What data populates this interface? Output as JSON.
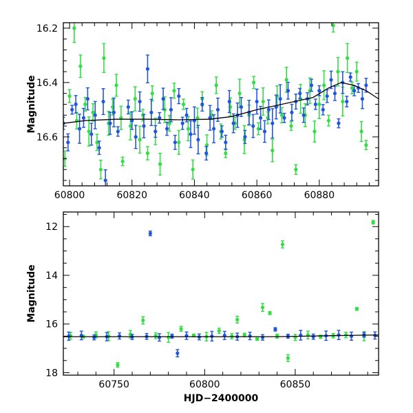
{
  "chart_data": [
    {
      "type": "scatter",
      "panel": "top",
      "xlabel": "",
      "ylabel": "Magnitude",
      "xlim": [
        60798,
        60899
      ],
      "ylim": [
        16.78,
        16.18
      ],
      "y_inverted": true,
      "xticks": [
        60800,
        60820,
        60840,
        60860,
        60880
      ],
      "xtick_labels": [
        "60800",
        "60820",
        "60840",
        "60860",
        "60880"
      ],
      "yticks": [
        16.2,
        16.4,
        16.6
      ],
      "ytick_labels": [
        "16.2",
        "16.4",
        "16.6"
      ],
      "grid": false,
      "series": [
        {
          "color": "#33dd44",
          "x": [
            60798.5,
            60800.0,
            60801.5,
            60802.3,
            60803.5,
            60805.0,
            60806.2,
            60807.5,
            60808.8,
            60810.0,
            60811.0,
            60812.5,
            60813.8,
            60815.0,
            60816.5,
            60817.0,
            60819.5,
            60821.0,
            60822.5,
            60823.5,
            60825.0,
            60826.5,
            60827.5,
            60829.0,
            60830.5,
            60832.0,
            60833.5,
            60835.0,
            60836.5,
            60838.0,
            60839.5,
            60841.0,
            60842.5,
            60844.0,
            60845.5,
            60847.0,
            60848.5,
            60850.0,
            60851.5,
            60853.0,
            60854.5,
            60856.0,
            60857.5,
            60859.0,
            60860.5,
            60862.0,
            60863.5,
            60865.0,
            60866.5,
            60868.0,
            60869.5,
            60871.0,
            60872.5,
            60874.0,
            60875.5,
            60877.0,
            60878.5,
            60880.0,
            60881.5,
            60883.0,
            60884.5,
            60886.0,
            60887.5,
            60889.0,
            60890.5,
            60892.0,
            60893.5,
            60895.0
          ],
          "y": [
            16.68,
            16.45,
            16.2,
            16.54,
            16.34,
            16.48,
            16.58,
            16.51,
            16.62,
            16.72,
            16.31,
            16.55,
            16.49,
            16.41,
            16.53,
            16.69,
            16.56,
            16.46,
            16.61,
            16.52,
            16.66,
            16.44,
            16.58,
            16.7,
            16.5,
            16.55,
            16.43,
            16.62,
            16.48,
            16.57,
            16.72,
            16.53,
            16.46,
            16.63,
            16.52,
            16.41,
            16.58,
            16.66,
            16.49,
            16.55,
            16.44,
            16.61,
            16.52,
            16.4,
            16.57,
            16.47,
            16.53,
            16.65,
            16.45,
            16.52,
            16.39,
            16.56,
            16.72,
            16.46,
            16.52,
            16.43,
            16.58,
            16.48,
            16.41,
            16.54,
            16.19,
            16.36,
            16.47,
            16.31,
            16.42,
            16.36,
            16.58,
            16.63
          ]
        },
        {
          "color": "#2255dd",
          "x": [
            60798.0,
            60799.5,
            60800.8,
            60802.0,
            60803.2,
            60804.5,
            60805.8,
            60807.0,
            60808.2,
            60809.5,
            60810.8,
            60811.5,
            60813.0,
            60814.2,
            60815.5,
            60818.8,
            60820.0,
            60821.2,
            60822.5,
            60823.8,
            60825.0,
            60826.2,
            60827.5,
            60828.8,
            60830.0,
            60831.2,
            60832.5,
            60833.8,
            60835.0,
            60836.2,
            60837.5,
            60838.8,
            60840.0,
            60841.2,
            60842.5,
            60843.8,
            60845.0,
            60846.2,
            60847.5,
            60848.8,
            60850.0,
            60851.2,
            60852.5,
            60853.8,
            60855.0,
            60856.2,
            60857.5,
            60858.8,
            60860.0,
            60861.2,
            60862.5,
            60863.8,
            60865.0,
            60866.2,
            60867.5,
            60868.8,
            60870.0,
            60871.2,
            60872.5,
            60873.8,
            60875.0,
            60876.2,
            60877.5,
            60878.8,
            60880.0,
            60881.2,
            60882.5,
            60883.8,
            60885.0,
            60886.2,
            60887.5,
            60888.8,
            60890.0,
            60891.2,
            60892.5,
            60893.8,
            60895.0
          ],
          "y": [
            16.55,
            16.62,
            16.5,
            16.48,
            16.57,
            16.53,
            16.46,
            16.59,
            16.52,
            16.64,
            16.47,
            16.76,
            16.55,
            16.51,
            16.58,
            16.49,
            16.54,
            16.6,
            16.47,
            16.56,
            16.35,
            16.51,
            16.58,
            16.53,
            16.46,
            16.57,
            16.5,
            16.62,
            16.45,
            16.55,
            16.52,
            16.59,
            16.54,
            16.61,
            16.48,
            16.66,
            16.53,
            16.57,
            16.5,
            16.58,
            16.62,
            16.47,
            16.55,
            16.52,
            16.49,
            16.6,
            16.51,
            16.56,
            16.47,
            16.53,
            16.58,
            16.5,
            16.55,
            16.49,
            16.46,
            16.53,
            16.43,
            16.51,
            16.47,
            16.44,
            16.52,
            16.46,
            16.41,
            16.48,
            16.43,
            16.5,
            16.45,
            16.39,
            16.44,
            16.55,
            16.4,
            16.47,
            16.38,
            16.43,
            16.42,
            16.46,
            16.41
          ]
        }
      ],
      "model_curve": {
        "color": "#000000",
        "x": [
          60798,
          60805,
          60815,
          60825,
          60835,
          60845,
          60852,
          60860,
          60866,
          60872,
          60878,
          60883,
          60887,
          60891,
          60895,
          60899
        ],
        "y": [
          16.55,
          16.54,
          16.535,
          16.535,
          16.537,
          16.535,
          16.525,
          16.5,
          16.485,
          16.47,
          16.455,
          16.42,
          16.4,
          16.41,
          16.43,
          16.46
        ]
      }
    },
    {
      "type": "scatter",
      "panel": "bottom",
      "xlabel": "HJD−2400000",
      "ylabel": "Magnitude",
      "xlim": [
        60722,
        60896
      ],
      "ylim": [
        18.1,
        11.4
      ],
      "y_inverted": true,
      "xticks": [
        60750,
        60800,
        60850
      ],
      "xtick_labels": [
        "60750",
        "60800",
        "60850"
      ],
      "yticks": [
        12,
        14,
        16,
        18
      ],
      "ytick_labels": [
        "12",
        "14",
        "16",
        "18"
      ],
      "grid": false,
      "series": [
        {
          "color": "#33dd44",
          "x": [
            60726,
            60733,
            60740,
            60747,
            60752,
            60759,
            60766,
            60773,
            60780,
            60787,
            60794,
            60801,
            60808,
            60815,
            60818,
            60822,
            60829,
            60832,
            60836,
            60840,
            60843,
            60846,
            60850,
            60857,
            60864,
            60871,
            60878,
            60884,
            60888,
            60893
          ],
          "y": [
            16.48,
            16.52,
            16.45,
            16.5,
            17.68,
            16.42,
            15.85,
            16.48,
            16.55,
            16.2,
            16.47,
            16.52,
            16.28,
            16.5,
            15.82,
            16.45,
            16.62,
            15.32,
            15.55,
            16.5,
            12.73,
            17.4,
            16.55,
            16.45,
            16.52,
            16.48,
            16.45,
            15.38,
            16.5,
            11.82
          ]
        },
        {
          "color": "#2255dd",
          "x": [
            60725,
            60732,
            60739,
            60746,
            60753,
            60760,
            60768,
            60770,
            60775,
            60782,
            60785,
            60790,
            60797,
            60804,
            60811,
            60818,
            60825,
            60832,
            60839,
            60846,
            60853,
            60860,
            60867,
            60874,
            60881,
            60888,
            60894
          ],
          "y": [
            16.5,
            16.47,
            16.55,
            16.52,
            16.49,
            16.53,
            16.51,
            12.28,
            16.55,
            16.5,
            17.2,
            16.48,
            16.53,
            16.5,
            16.47,
            16.52,
            16.49,
            16.55,
            16.22,
            16.5,
            16.46,
            16.52,
            16.48,
            16.45,
            16.5,
            16.44,
            16.47
          ]
        }
      ],
      "model_curve": {
        "color": "#000000",
        "x": [
          60722,
          60760,
          60800,
          60840,
          60870,
          60896
        ],
        "y": [
          16.52,
          16.52,
          16.52,
          16.52,
          16.48,
          16.45
        ]
      }
    }
  ]
}
